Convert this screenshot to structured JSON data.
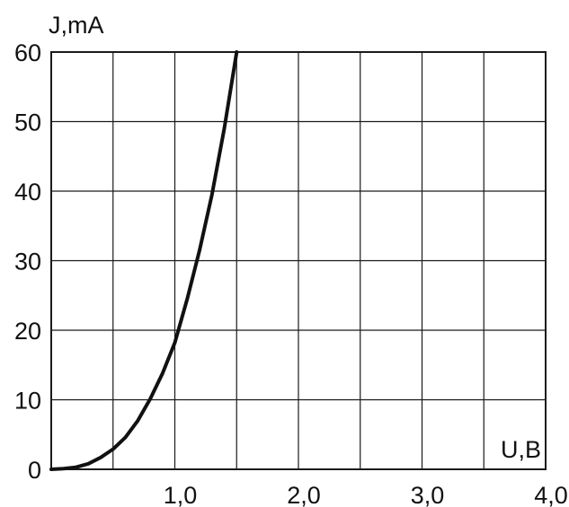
{
  "chart_data": {
    "type": "line",
    "title": "",
    "xlabel": "U,B",
    "ylabel": "J,mA",
    "xlim": [
      0,
      4.0
    ],
    "ylim": [
      0,
      60
    ],
    "grid": true,
    "x_grid_step": 0.5,
    "y_grid_step": 10,
    "x_tick_labels": [
      "1,0",
      "2,0",
      "3,0",
      "4,0"
    ],
    "y_tick_labels": [
      "0",
      "10",
      "20",
      "30",
      "40",
      "50",
      "60"
    ],
    "series": [
      {
        "color": "#111111",
        "x": [
          0,
          0.1,
          0.2,
          0.3,
          0.4,
          0.5,
          0.6,
          0.7,
          0.8,
          0.9,
          1.0,
          1.1,
          1.2,
          1.3,
          1.4,
          1.5
        ],
        "y": [
          0,
          0.1,
          0.3,
          0.8,
          1.7,
          2.9,
          4.6,
          7.0,
          10.1,
          13.8,
          18.2,
          24.5,
          31.5,
          39.5,
          49.0,
          60.0
        ]
      }
    ]
  }
}
